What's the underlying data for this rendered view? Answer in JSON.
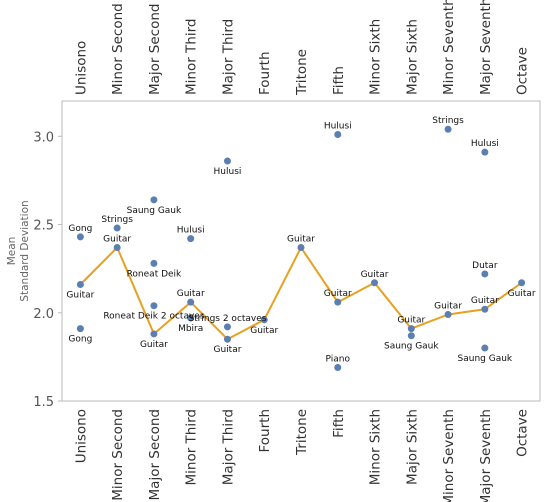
{
  "chart_data": {
    "type": "scatter",
    "title": "",
    "xlabel": "",
    "ylabel_lines": [
      "Mean",
      "Standard Deviation"
    ],
    "ylim": [
      1.5,
      3.2
    ],
    "yticks": [
      1.5,
      2.0,
      2.5,
      3.0
    ],
    "ytick_labels": [
      "1.5",
      "2.0",
      "2.5",
      "3.0"
    ],
    "grid": false,
    "categories": [
      "Unisono",
      "Minor Second",
      "Major Second",
      "Minor Third",
      "Major Third",
      "Fourth",
      "Tritone",
      "Fifth",
      "Minor Sixth",
      "Major Sixth",
      "Minor Seventh",
      "Major Seventh",
      "Octave"
    ],
    "points": [
      {
        "cat": 0,
        "y": 2.43,
        "label": "Gong",
        "pos": "above"
      },
      {
        "cat": 0,
        "y": 2.16,
        "label": "Guitar",
        "pos": "below"
      },
      {
        "cat": 0,
        "y": 1.91,
        "label": "Gong",
        "pos": "below"
      },
      {
        "cat": 1,
        "y": 2.48,
        "label": "Strings",
        "pos": "above"
      },
      {
        "cat": 1,
        "y": 2.37,
        "label": "Guitar",
        "pos": "above"
      },
      {
        "cat": 2,
        "y": 2.64,
        "label": "Saung Gauk",
        "pos": "below"
      },
      {
        "cat": 2,
        "y": 2.28,
        "label": "Roneat Deik",
        "pos": "below"
      },
      {
        "cat": 2,
        "y": 2.04,
        "label": "Roneat Deik 2 octaves",
        "pos": "below"
      },
      {
        "cat": 2,
        "y": 1.88,
        "label": "Guitar",
        "pos": "below"
      },
      {
        "cat": 3,
        "y": 2.42,
        "label": "Hulusi",
        "pos": "above"
      },
      {
        "cat": 3,
        "y": 2.06,
        "label": "Guitar",
        "pos": "above"
      },
      {
        "cat": 3,
        "y": 1.97,
        "label": "Mbira",
        "pos": "below"
      },
      {
        "cat": 4,
        "y": 2.86,
        "label": "Hulusi",
        "pos": "below"
      },
      {
        "cat": 4,
        "y": 1.92,
        "label": "Strings 2 octaves",
        "pos": "above"
      },
      {
        "cat": 4,
        "y": 1.85,
        "label": "Guitar",
        "pos": "below"
      },
      {
        "cat": 5,
        "y": 1.96,
        "label": "Guitar",
        "pos": "below"
      },
      {
        "cat": 6,
        "y": 2.37,
        "label": "Guitar",
        "pos": "above"
      },
      {
        "cat": 7,
        "y": 3.01,
        "label": "Hulusi",
        "pos": "above"
      },
      {
        "cat": 7,
        "y": 2.06,
        "label": "Guitar",
        "pos": "above"
      },
      {
        "cat": 7,
        "y": 1.69,
        "label": "Piano",
        "pos": "above"
      },
      {
        "cat": 8,
        "y": 2.17,
        "label": "Guitar",
        "pos": "above"
      },
      {
        "cat": 9,
        "y": 1.91,
        "label": "Guitar",
        "pos": "above"
      },
      {
        "cat": 9,
        "y": 1.87,
        "label": "Saung Gauk",
        "pos": "below"
      },
      {
        "cat": 10,
        "y": 3.04,
        "label": "Strings",
        "pos": "above"
      },
      {
        "cat": 10,
        "y": 1.99,
        "label": "Guitar",
        "pos": "above"
      },
      {
        "cat": 11,
        "y": 2.91,
        "label": "Hulusi",
        "pos": "above"
      },
      {
        "cat": 11,
        "y": 2.22,
        "label": "Dutar",
        "pos": "above"
      },
      {
        "cat": 11,
        "y": 2.02,
        "label": "Guitar",
        "pos": "above"
      },
      {
        "cat": 11,
        "y": 1.8,
        "label": "Saung Gauk",
        "pos": "below"
      },
      {
        "cat": 12,
        "y": 2.17,
        "label": "Guitar",
        "pos": "below"
      }
    ],
    "series": [
      {
        "values": [
          2.16,
          2.37,
          1.88,
          2.06,
          1.85,
          1.96,
          2.37,
          2.06,
          2.17,
          1.91,
          1.99,
          2.02,
          2.17
        ]
      }
    ],
    "colors": {
      "point": "#5b7fb0",
      "line": "#e8a020",
      "axis": "#bbbbbb"
    }
  }
}
